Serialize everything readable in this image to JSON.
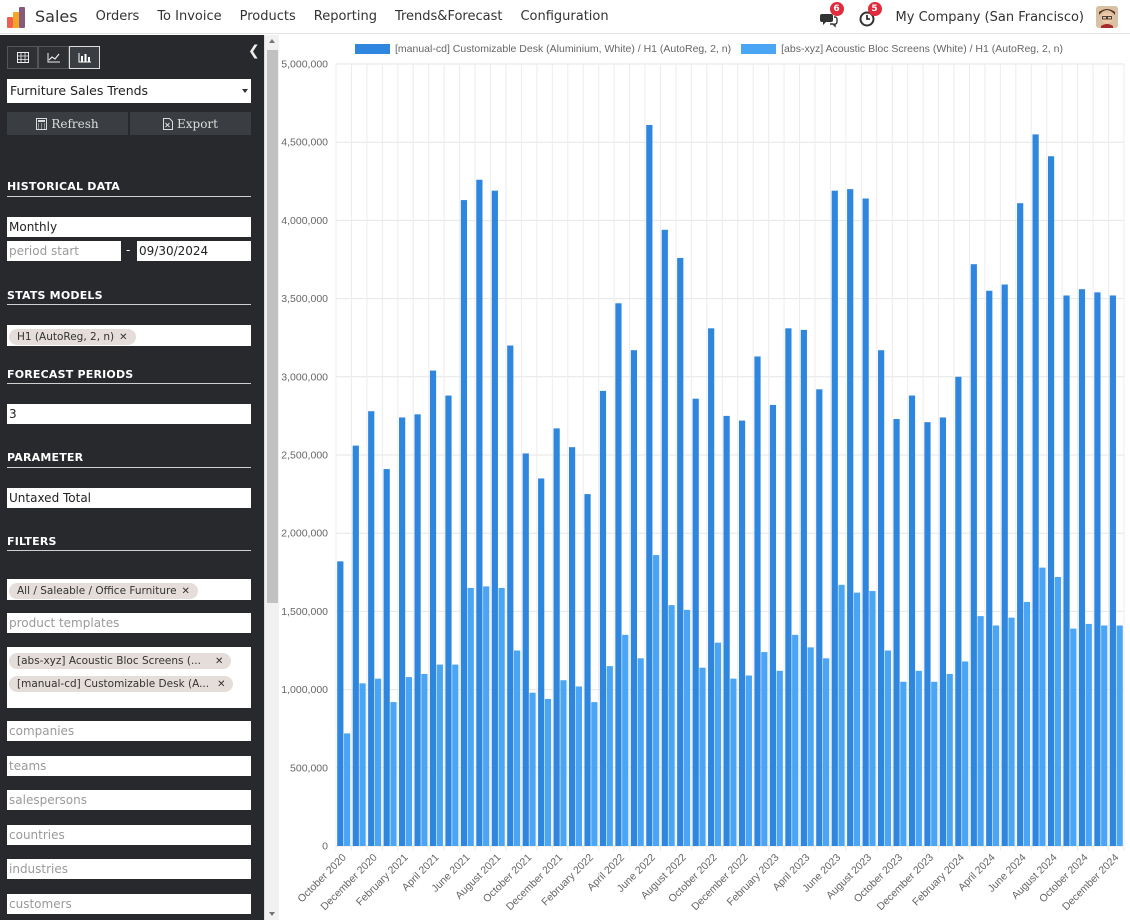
{
  "app": {
    "title": "Sales"
  },
  "menu": [
    "Orders",
    "To Invoice",
    "Products",
    "Reporting",
    "Trends&Forecast",
    "Configuration"
  ],
  "topbar": {
    "messages_count": "6",
    "activities_count": "5",
    "company": "My Company (San Francisco)",
    "icons": [
      "chat-icon",
      "clock-icon",
      "user-avatar"
    ]
  },
  "sidebar": {
    "view_modes": [
      "table-view",
      "line-chart-view",
      "bar-chart-view"
    ],
    "active_view": "bar-chart-view",
    "report": "Furniture Sales Trends",
    "refresh_label": "Refresh",
    "export_label": "Export",
    "historical_data": {
      "title": "HISTORICAL DATA",
      "interval": "Monthly",
      "period_start_placeholder": "period start",
      "separator": "-",
      "period_end": "09/30/2024"
    },
    "stats_models": {
      "title": "STATS MODELS",
      "tags": [
        "H1 (AutoReg, 2, n)"
      ]
    },
    "forecast_periods": {
      "title": "FORECAST PERIODS",
      "value": "3"
    },
    "parameter": {
      "title": "PARAMETER",
      "value": "Untaxed Total"
    },
    "filters": {
      "title": "FILTERS",
      "category_tags": [
        "All / Saleable / Office Furniture"
      ],
      "product_templates_placeholder": "product templates",
      "product_tags": [
        "[abs-xyz] Acoustic Bloc Screens (...",
        "[manual-cd] Customizable Desk (A..."
      ],
      "companies_placeholder": "companies",
      "teams_placeholder": "teams",
      "salespersons_placeholder": "salespersons",
      "countries_placeholder": "countries",
      "industries_placeholder": "industries",
      "customers_placeholder": "customers"
    }
  },
  "chart_data": {
    "type": "bar",
    "categories": [
      "October 2020",
      "November 2020",
      "December 2020",
      "January 2021",
      "February 2021",
      "March 2021",
      "April 2021",
      "May 2021",
      "June 2021",
      "July 2021",
      "August 2021",
      "September 2021",
      "October 2021",
      "November 2021",
      "December 2021",
      "January 2022",
      "February 2022",
      "March 2022",
      "April 2022",
      "May 2022",
      "June 2022",
      "July 2022",
      "August 2022",
      "September 2022",
      "October 2022",
      "November 2022",
      "December 2022",
      "January 2023",
      "February 2023",
      "March 2023",
      "April 2023",
      "May 2023",
      "June 2023",
      "July 2023",
      "August 2023",
      "September 2023",
      "October 2023",
      "November 2023",
      "December 2023",
      "January 2024",
      "February 2024",
      "March 2024",
      "April 2024",
      "May 2024",
      "June 2024",
      "July 2024",
      "August 2024",
      "September 2024",
      "October 2024",
      "November 2024",
      "December 2024"
    ],
    "tick_labels": [
      "October 2020",
      "December 2020",
      "February 2021",
      "April 2021",
      "June 2021",
      "August 2021",
      "October 2021",
      "December 2021",
      "February 2022",
      "April 2022",
      "June 2022",
      "August 2022",
      "October 2022",
      "December 2022",
      "February 2023",
      "April 2023",
      "June 2023",
      "August 2023",
      "October 2023",
      "December 2023",
      "February 2024",
      "April 2024",
      "June 2024",
      "August 2024",
      "October 2024",
      "December 2024"
    ],
    "series": [
      {
        "name": "[manual-cd] Customizable Desk (Aluminium, White) / H1 (AutoReg, 2, n)",
        "color": "#2e86de",
        "values": [
          1820000,
          2560000,
          2780000,
          2410000,
          2740000,
          2760000,
          3040000,
          2880000,
          4130000,
          4260000,
          4190000,
          3200000,
          2510000,
          2350000,
          2670000,
          2550000,
          2250000,
          2910000,
          3470000,
          3170000,
          4610000,
          3940000,
          3760000,
          2860000,
          3310000,
          2750000,
          2720000,
          3130000,
          2820000,
          3310000,
          3300000,
          2920000,
          4190000,
          4200000,
          4140000,
          3170000,
          2730000,
          2880000,
          2710000,
          2740000,
          3000000,
          3720000,
          3550000,
          3590000,
          4110000,
          4550000,
          4410000,
          3520000,
          3560000,
          3540000,
          3520000
        ]
      },
      {
        "name": "[abs-xyz] Acoustic Bloc Screens (White) / H1 (AutoReg, 2, n)",
        "color": "#4ba5f5",
        "values": [
          720000,
          1040000,
          1070000,
          920000,
          1080000,
          1100000,
          1160000,
          1160000,
          1650000,
          1660000,
          1650000,
          1250000,
          980000,
          940000,
          1060000,
          1020000,
          920000,
          1150000,
          1350000,
          1200000,
          1860000,
          1540000,
          1510000,
          1140000,
          1300000,
          1070000,
          1090000,
          1240000,
          1120000,
          1350000,
          1270000,
          1200000,
          1670000,
          1620000,
          1630000,
          1250000,
          1050000,
          1120000,
          1050000,
          1100000,
          1180000,
          1470000,
          1410000,
          1460000,
          1560000,
          1780000,
          1720000,
          1390000,
          1420000,
          1410000,
          1410000
        ]
      }
    ],
    "ylim": [
      0,
      5000000
    ],
    "y_ticks": [
      0,
      500000,
      1000000,
      1500000,
      2000000,
      2500000,
      3000000,
      3500000,
      4000000,
      4500000,
      5000000
    ],
    "grid": true,
    "legend_position": "top"
  }
}
